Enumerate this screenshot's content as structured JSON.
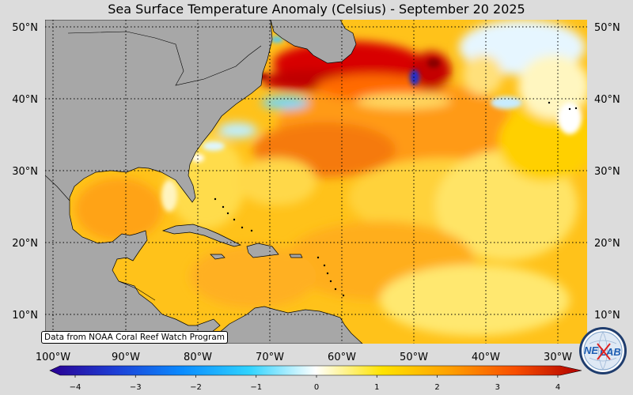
{
  "title": "Sea Surface Temperature Anomaly (Celsius) - September 20 2025",
  "map": {
    "lon_range": [
      -102,
      -27
    ],
    "lat_range": [
      6,
      51
    ],
    "lon_ticks": [
      "100°W",
      "90°W",
      "80°W",
      "70°W",
      "60°W",
      "50°W",
      "40°W",
      "30°W"
    ],
    "lat_ticks": [
      "50°N",
      "40°N",
      "30°N",
      "20°N",
      "10°N"
    ],
    "land_color": "#a7a7a7",
    "gridline_style": "dotted"
  },
  "colorbar": {
    "range": [
      -4,
      4
    ],
    "ticks": [
      "−4",
      "−3",
      "−2",
      "−1",
      "0",
      "1",
      "2",
      "3",
      "4"
    ],
    "colors": [
      "#2a0092",
      "#1d3fd6",
      "#0a8cff",
      "#2fd3ff",
      "#ffffff",
      "#ffe300",
      "#ffa100",
      "#f84e00",
      "#b00000"
    ]
  },
  "source_note": "Data from NOAA Coral Reef Watch Program",
  "logo": {
    "text_top": "NE",
    "text_bottom": "LAB",
    "icon": "nexlab-globe-logo"
  }
}
